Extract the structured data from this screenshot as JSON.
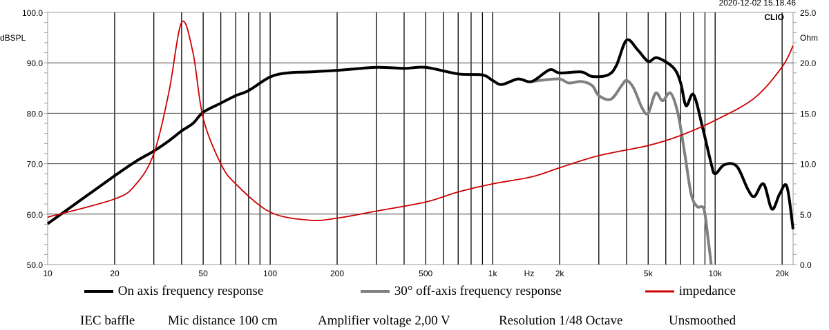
{
  "chart_data": {
    "type": "line",
    "timestamp": "2020-12-02 15.18.46",
    "brand": "CLIO",
    "xlabel": "Hz",
    "ylabel": "dBSPL",
    "y2label": "Ohm",
    "xscale": "log",
    "xlim": [
      10,
      22400
    ],
    "ylim": [
      50,
      100
    ],
    "y2lim": [
      0,
      25
    ],
    "x_ticks": [
      "10",
      "20",
      "50",
      "100",
      "200",
      "500",
      "1k",
      "2k",
      "5k",
      "10k",
      "20k"
    ],
    "x_tick_values": [
      10,
      20,
      50,
      100,
      200,
      500,
      1000,
      2000,
      5000,
      10000,
      20000
    ],
    "y_ticks": [
      "50.0",
      "60.0",
      "70.0",
      "80.0",
      "90.0",
      "100.0"
    ],
    "y2_ticks": [
      "0.0",
      "5.0",
      "10.0",
      "15.0",
      "20.0",
      "25.0"
    ],
    "grid": true,
    "series": [
      {
        "name": "On axis frequency response",
        "axis": "left",
        "color": "#000000",
        "points": [
          [
            10,
            58.1
          ],
          [
            20,
            67.6
          ],
          [
            25,
            70.5
          ],
          [
            30,
            72.5
          ],
          [
            35,
            74.5
          ],
          [
            40,
            76.5
          ],
          [
            45,
            78
          ],
          [
            50,
            80.2
          ],
          [
            60,
            82
          ],
          [
            70,
            83.5
          ],
          [
            80,
            84.5
          ],
          [
            100,
            87.2
          ],
          [
            120,
            88
          ],
          [
            150,
            88.2
          ],
          [
            200,
            88.5
          ],
          [
            300,
            89.1
          ],
          [
            400,
            88.9
          ],
          [
            500,
            89.1
          ],
          [
            700,
            87.8
          ],
          [
            900,
            87.6
          ],
          [
            1000,
            86.5
          ],
          [
            1100,
            85.7
          ],
          [
            1300,
            86.8
          ],
          [
            1500,
            86.3
          ],
          [
            1800,
            88.6
          ],
          [
            2000,
            88
          ],
          [
            2500,
            88.2
          ],
          [
            2800,
            87.3
          ],
          [
            3300,
            87.6
          ],
          [
            3600,
            89.5
          ],
          [
            4000,
            94.5
          ],
          [
            4500,
            92.5
          ],
          [
            5000,
            90.3
          ],
          [
            5500,
            91
          ],
          [
            6500,
            89
          ],
          [
            7000,
            86
          ],
          [
            7400,
            81.5
          ],
          [
            8000,
            83.7
          ],
          [
            8800,
            77
          ],
          [
            9600,
            70
          ],
          [
            10000,
            68
          ],
          [
            11000,
            69.8
          ],
          [
            12500,
            69.5
          ],
          [
            14000,
            65
          ],
          [
            15000,
            63.5
          ],
          [
            16500,
            66
          ],
          [
            18000,
            61
          ],
          [
            19500,
            64
          ],
          [
            21000,
            65.5
          ],
          [
            22400,
            57
          ]
        ]
      },
      {
        "name": "30° off-axis frequency response",
        "axis": "left",
        "color": "#808080",
        "points": [
          [
            1500,
            86.3
          ],
          [
            1700,
            86.6
          ],
          [
            2000,
            86.8
          ],
          [
            2200,
            86
          ],
          [
            2500,
            86.3
          ],
          [
            2800,
            85.5
          ],
          [
            3000,
            83.5
          ],
          [
            3400,
            82.8
          ],
          [
            3800,
            85.5
          ],
          [
            4000,
            86.5
          ],
          [
            4300,
            85
          ],
          [
            4700,
            81
          ],
          [
            5000,
            80
          ],
          [
            5400,
            84
          ],
          [
            5800,
            82.5
          ],
          [
            6300,
            84
          ],
          [
            6800,
            80
          ],
          [
            7300,
            72
          ],
          [
            7800,
            64
          ],
          [
            8300,
            61.5
          ],
          [
            8900,
            61
          ],
          [
            9300,
            55
          ],
          [
            9600,
            50
          ]
        ]
      },
      {
        "name": "impedance",
        "axis": "right",
        "color": "#cc0000",
        "points": [
          [
            10,
            4.7
          ],
          [
            20,
            6.5
          ],
          [
            25,
            8
          ],
          [
            30,
            11
          ],
          [
            35,
            17
          ],
          [
            40,
            24
          ],
          [
            45,
            21
          ],
          [
            50,
            14.5
          ],
          [
            60,
            10
          ],
          [
            70,
            8
          ],
          [
            100,
            5.2
          ],
          [
            150,
            4.4
          ],
          [
            200,
            4.6
          ],
          [
            300,
            5.3
          ],
          [
            500,
            6.2
          ],
          [
            700,
            7.2
          ],
          [
            1000,
            8
          ],
          [
            1500,
            8.7
          ],
          [
            2000,
            9.6
          ],
          [
            3000,
            10.8
          ],
          [
            5000,
            11.8
          ],
          [
            7000,
            12.8
          ],
          [
            10000,
            14.3
          ],
          [
            15000,
            16.5
          ],
          [
            20000,
            19.6
          ],
          [
            22400,
            21.7
          ]
        ]
      }
    ],
    "legend": [
      "On axis frequency response",
      "30° off-axis frequency response",
      "impedance"
    ],
    "legend_placement": "bottom",
    "footer": [
      "IEC baffle",
      "Mic distance 100 cm",
      "Amplifier voltage 2,00 V",
      "Resolution 1/48 Octave",
      "Unsmoothed"
    ]
  }
}
